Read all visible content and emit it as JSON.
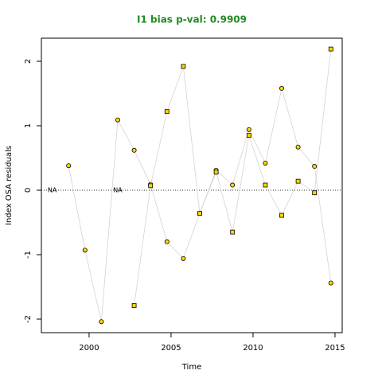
{
  "chart_data": {
    "type": "line",
    "title": "I1 bias p-val: 0.9909",
    "xlabel": "Time",
    "ylabel": "Index OSA residuals",
    "xlim": [
      1997.09,
      2015.44
    ],
    "ylim": [
      -2.21,
      2.358
    ],
    "xticks": [
      2000,
      2005,
      2010,
      2015
    ],
    "yticks": [
      -2,
      -1,
      0,
      1,
      2
    ],
    "hline": 0,
    "line_color": "#d3d3d3",
    "series": [
      {
        "marker": "circle",
        "color": "#ffd700",
        "x": [
          1998.75,
          1999.75,
          2000.75,
          2001.75,
          2002.75,
          2003.75,
          2004.75,
          2005.75,
          2006.75,
          2007.75,
          2008.75,
          2009.75,
          2010.75,
          2011.75,
          2012.75,
          2013.75,
          2014.75
        ],
        "values": [
          0.38,
          -0.93,
          -2.04,
          1.09,
          0.62,
          0.09,
          -0.8,
          -1.06,
          -0.36,
          0.31,
          0.08,
          0.94,
          0.42,
          1.58,
          0.67,
          0.37,
          -1.44
        ]
      },
      {
        "marker": "square",
        "color": "#ffd700",
        "x": [
          2002.75,
          2003.75,
          2004.75,
          2005.75,
          2006.75,
          2007.75,
          2008.75,
          2009.75,
          2010.75,
          2011.75,
          2012.75,
          2013.75,
          2014.75
        ],
        "values": [
          -1.79,
          0.07,
          1.22,
          1.92,
          -0.36,
          0.28,
          -0.65,
          0.85,
          0.08,
          -0.39,
          0.14,
          -0.04,
          2.19
        ]
      }
    ],
    "annotations": [
      {
        "text": "NA",
        "x": 1997.75,
        "y": 0
      },
      {
        "text": "NA",
        "x": 2001.75,
        "y": 0
      }
    ]
  }
}
